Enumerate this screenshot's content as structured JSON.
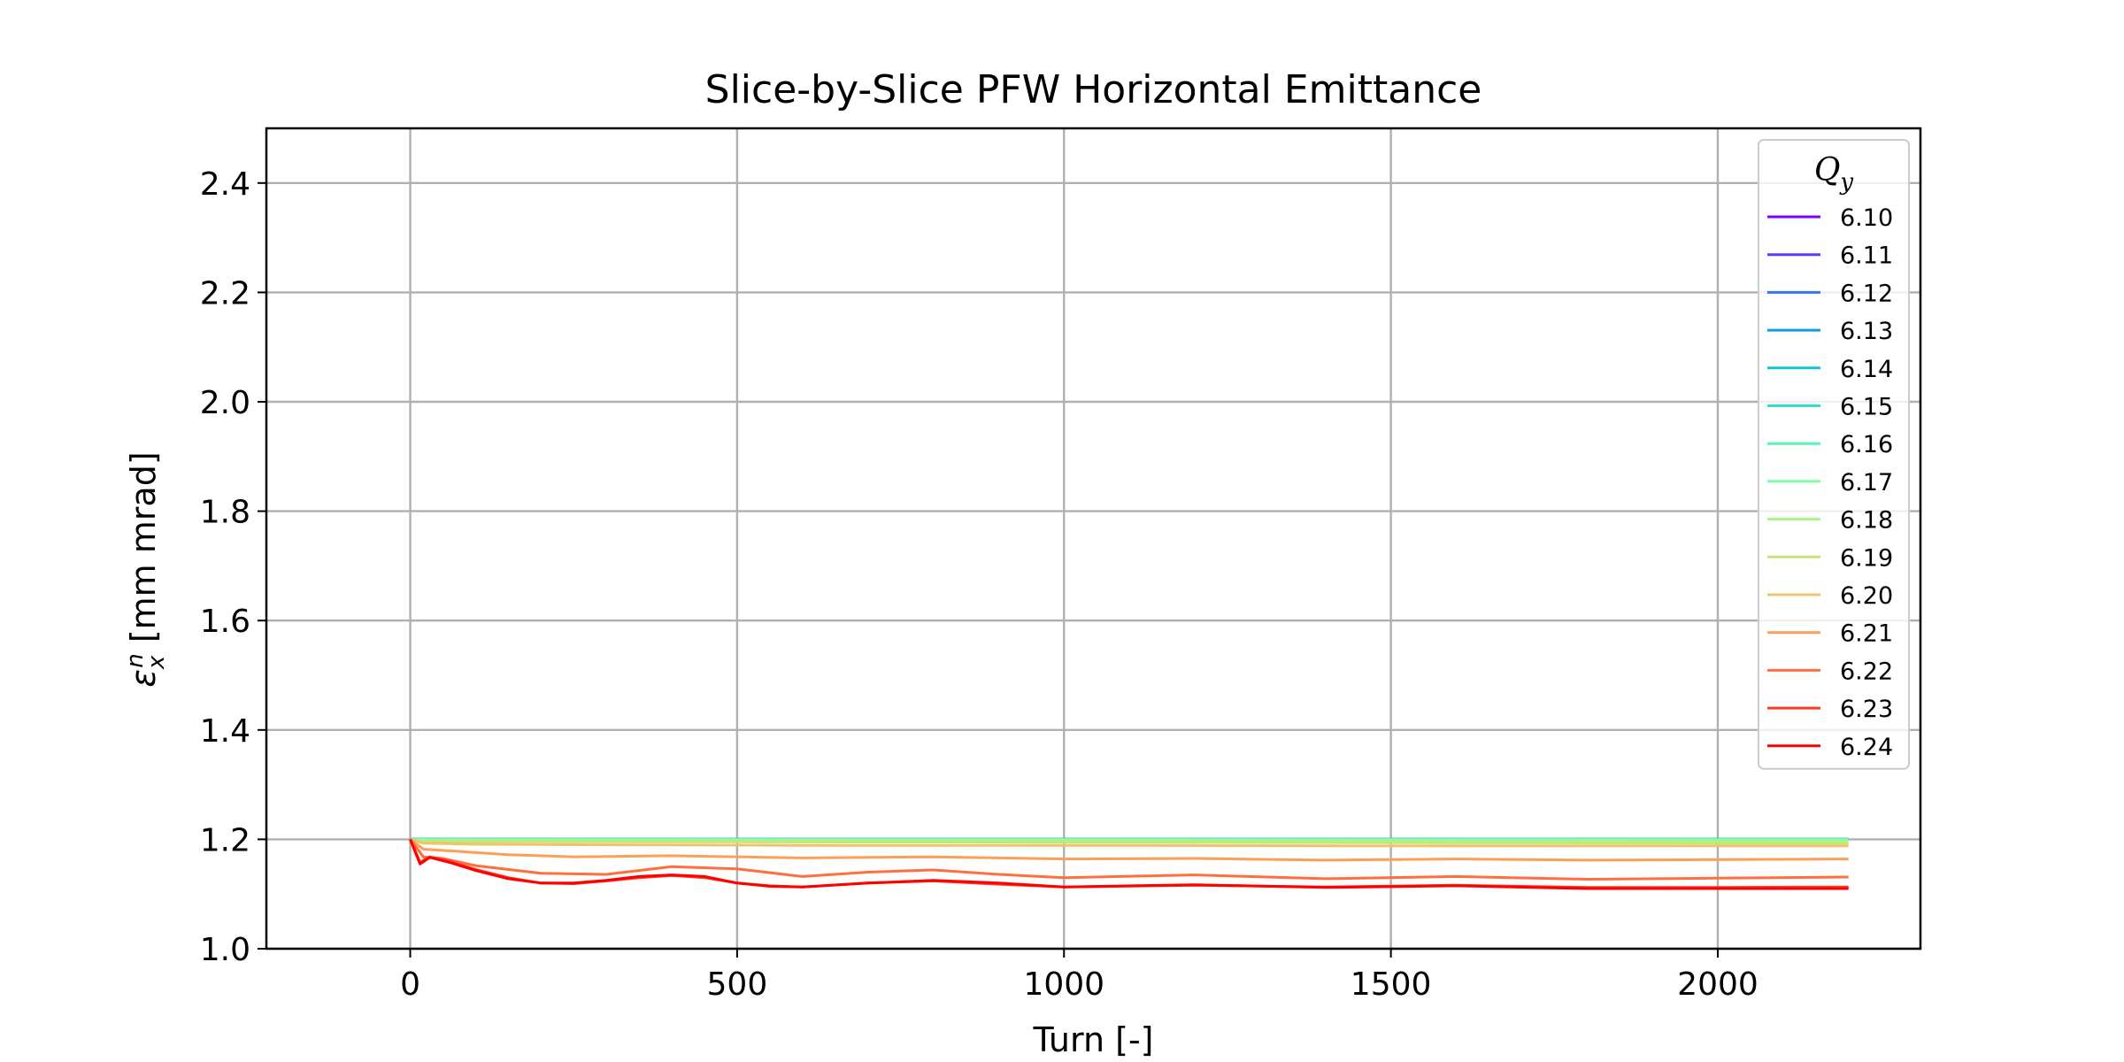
{
  "chart_data": {
    "type": "line",
    "title": "Slice-by-Slice PFW Horizontal Emittance",
    "xlabel": "Turn [-]",
    "ylabel_symbol": "ε",
    "ylabel_sub": "x",
    "ylabel_sup": "n",
    "ylabel_units": " [mm mrad]",
    "xlim": [
      -220,
      2310
    ],
    "ylim": [
      1.0,
      2.5
    ],
    "xticks": [
      0,
      500,
      1000,
      1500,
      2000
    ],
    "xtick_labels": [
      "0",
      "500",
      "1000",
      "1500",
      "2000"
    ],
    "yticks": [
      1.0,
      1.2,
      1.4,
      1.6,
      1.8,
      2.0,
      2.2,
      2.4
    ],
    "ytick_labels": [
      "1.0",
      "1.2",
      "1.4",
      "1.6",
      "1.8",
      "2.0",
      "2.2",
      "2.4"
    ],
    "grid": true,
    "legend": {
      "title_symbol": "Q",
      "title_sub": "y",
      "placement": "top-right"
    },
    "series": [
      {
        "name": "6.10",
        "color": "#8000ff",
        "x": [
          0,
          2200
        ],
        "y": [
          1.2,
          1.2
        ]
      },
      {
        "name": "6.11",
        "color": "#5a3cfb",
        "x": [
          0,
          2200
        ],
        "y": [
          1.2,
          1.2
        ]
      },
      {
        "name": "6.12",
        "color": "#3673f3",
        "x": [
          0,
          2200
        ],
        "y": [
          1.2,
          1.2
        ]
      },
      {
        "name": "6.13",
        "color": "#129ce6",
        "x": [
          0,
          2200
        ],
        "y": [
          1.2,
          1.2
        ]
      },
      {
        "name": "6.14",
        "color": "#12c0d8",
        "x": [
          0,
          2200
        ],
        "y": [
          1.2,
          1.2
        ]
      },
      {
        "name": "6.15",
        "color": "#36dbca",
        "x": [
          0,
          2200
        ],
        "y": [
          1.2,
          1.2
        ]
      },
      {
        "name": "6.16",
        "color": "#5af1b5",
        "x": [
          0,
          2200
        ],
        "y": [
          1.2,
          1.2
        ]
      },
      {
        "name": "6.17",
        "color": "#7efba4",
        "x": [
          0,
          2200
        ],
        "y": [
          1.199,
          1.199
        ]
      },
      {
        "name": "6.18",
        "color": "#a2f98a",
        "x": [
          0,
          2200
        ],
        "y": [
          1.198,
          1.197
        ]
      },
      {
        "name": "6.19",
        "color": "#c6e578",
        "x": [
          0,
          2200
        ],
        "y": [
          1.196,
          1.193
        ]
      },
      {
        "name": "6.20",
        "color": "#ecc568",
        "x": [
          0,
          20,
          100,
          300,
          600,
          1000,
          1500,
          2000,
          2200
        ],
        "y": [
          1.2,
          1.193,
          1.191,
          1.19,
          1.189,
          1.189,
          1.188,
          1.188,
          1.188
        ]
      },
      {
        "name": "6.21",
        "color": "#ff9f55",
        "x": [
          0,
          20,
          60,
          150,
          250,
          400,
          600,
          800,
          1000,
          1200,
          1400,
          1600,
          1800,
          2000,
          2200
        ],
        "y": [
          1.2,
          1.182,
          1.179,
          1.172,
          1.168,
          1.17,
          1.166,
          1.168,
          1.164,
          1.165,
          1.162,
          1.164,
          1.162,
          1.163,
          1.164
        ]
      },
      {
        "name": "6.22",
        "color": "#ff6e3f",
        "x": [
          0,
          20,
          50,
          100,
          200,
          300,
          400,
          500,
          600,
          700,
          800,
          900,
          1000,
          1200,
          1400,
          1600,
          1800,
          2000,
          2200
        ],
        "y": [
          1.2,
          1.168,
          1.165,
          1.152,
          1.138,
          1.136,
          1.15,
          1.146,
          1.132,
          1.14,
          1.144,
          1.136,
          1.13,
          1.135,
          1.128,
          1.132,
          1.127,
          1.129,
          1.131
        ]
      },
      {
        "name": "6.23",
        "color": "#ff3a21",
        "x": [
          0,
          15,
          30,
          60,
          100,
          150,
          200,
          250,
          300,
          350,
          400,
          450,
          500,
          550,
          600,
          700,
          800,
          900,
          1000,
          1200,
          1400,
          1600,
          1800,
          2000,
          2200
        ],
        "y": [
          1.2,
          1.158,
          1.168,
          1.16,
          1.145,
          1.13,
          1.12,
          1.119,
          1.124,
          1.13,
          1.134,
          1.13,
          1.12,
          1.115,
          1.113,
          1.12,
          1.124,
          1.118,
          1.113,
          1.116,
          1.113,
          1.116,
          1.112,
          1.112,
          1.113
        ]
      },
      {
        "name": "6.24",
        "color": "#ff0000",
        "x": [
          0,
          15,
          30,
          60,
          100,
          150,
          200,
          250,
          300,
          350,
          400,
          450,
          500,
          550,
          600,
          700,
          800,
          900,
          1000,
          1200,
          1400,
          1600,
          1800,
          2000,
          2200
        ],
        "y": [
          1.2,
          1.155,
          1.167,
          1.158,
          1.143,
          1.128,
          1.12,
          1.12,
          1.125,
          1.132,
          1.135,
          1.132,
          1.12,
          1.114,
          1.113,
          1.12,
          1.125,
          1.12,
          1.113,
          1.117,
          1.112,
          1.115,
          1.11,
          1.11,
          1.11
        ]
      }
    ]
  }
}
